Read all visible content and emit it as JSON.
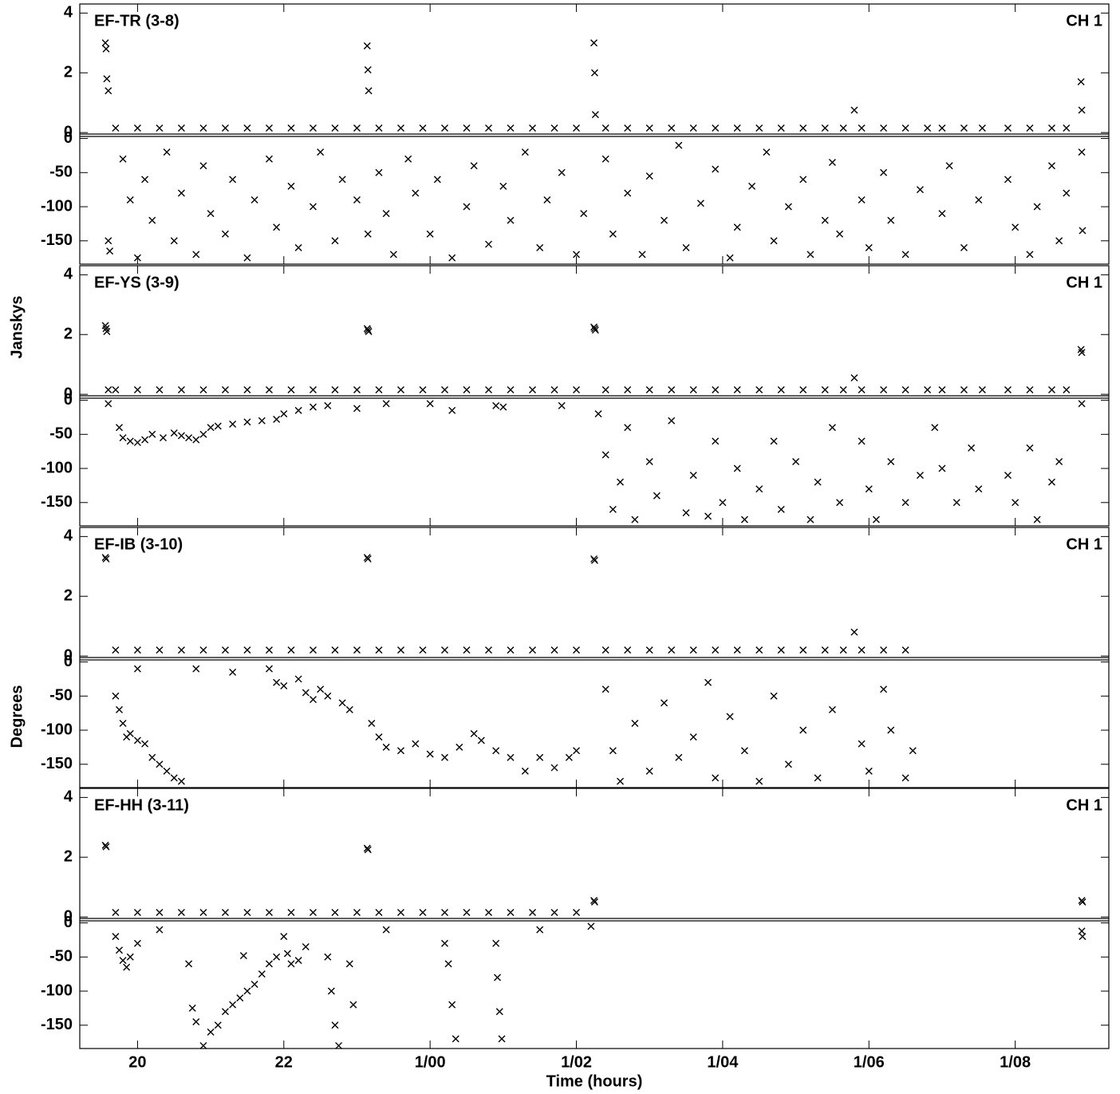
{
  "xlabel": "Time (hours)",
  "ylabels": [
    "Janskys",
    "Degrees"
  ],
  "xlim": [
    19.21,
    33.28
  ],
  "xticks": [
    {
      "value": 20,
      "label": "20"
    },
    {
      "value": 22,
      "label": "22"
    },
    {
      "value": 24,
      "label": "1/00"
    },
    {
      "value": 26,
      "label": "1/02"
    },
    {
      "value": 28,
      "label": "1/04"
    },
    {
      "value": 30,
      "label": "1/06"
    },
    {
      "value": 32,
      "label": "1/08"
    }
  ],
  "chart_data": [
    {
      "type": "scatter",
      "title": "EF-TR (3-8)",
      "channel_label": "CH 1",
      "amplitude_ylim": [
        -0.05,
        4.25
      ],
      "amplitude_yticks": [
        0,
        2,
        4
      ],
      "phase_ylim": [
        -183,
        3
      ],
      "phase_yticks": [
        0,
        -50,
        -100,
        -150
      ],
      "amplitude": {
        "x": [
          19.56,
          19.57,
          19.58,
          19.6,
          19.7,
          20.0,
          20.3,
          20.6,
          20.9,
          21.2,
          21.5,
          21.8,
          22.1,
          22.4,
          22.7,
          23.0,
          23.14,
          23.15,
          23.16,
          23.3,
          23.6,
          23.9,
          24.2,
          24.5,
          24.8,
          25.1,
          25.4,
          25.7,
          26.0,
          26.24,
          26.25,
          26.26,
          26.4,
          26.7,
          27.0,
          27.3,
          27.6,
          27.9,
          28.2,
          28.5,
          28.8,
          29.1,
          29.4,
          29.65,
          29.8,
          29.9,
          30.2,
          30.5,
          30.8,
          31.0,
          31.3,
          31.55,
          31.9,
          32.2,
          32.5,
          32.7,
          32.9,
          32.91
        ],
        "values": [
          3.0,
          2.8,
          1.8,
          1.4,
          0.15,
          0.15,
          0.15,
          0.15,
          0.15,
          0.15,
          0.15,
          0.15,
          0.15,
          0.15,
          0.15,
          0.15,
          2.9,
          2.1,
          1.4,
          0.15,
          0.15,
          0.15,
          0.15,
          0.15,
          0.15,
          0.15,
          0.15,
          0.15,
          0.15,
          3.0,
          2.0,
          0.6,
          0.15,
          0.15,
          0.15,
          0.15,
          0.15,
          0.15,
          0.15,
          0.15,
          0.15,
          0.15,
          0.15,
          0.15,
          0.75,
          0.15,
          0.15,
          0.15,
          0.15,
          0.15,
          0.15,
          0.15,
          0.15,
          0.15,
          0.15,
          0.15,
          1.7,
          0.75
        ]
      },
      "phase": {
        "x": [
          19.6,
          19.62,
          19.8,
          19.9,
          20.0,
          20.1,
          20.2,
          20.4,
          20.5,
          20.6,
          20.8,
          20.9,
          21.0,
          21.2,
          21.3,
          21.5,
          21.6,
          21.8,
          21.9,
          22.1,
          22.2,
          22.4,
          22.5,
          22.7,
          22.8,
          23.0,
          23.15,
          23.3,
          23.4,
          23.5,
          23.7,
          23.8,
          24.0,
          24.1,
          24.3,
          24.5,
          24.6,
          24.8,
          25.0,
          25.1,
          25.3,
          25.5,
          25.6,
          25.8,
          26.0,
          26.1,
          26.4,
          26.5,
          26.7,
          26.9,
          27.0,
          27.2,
          27.4,
          27.5,
          27.7,
          27.9,
          28.1,
          28.2,
          28.4,
          28.6,
          28.7,
          28.9,
          29.1,
          29.2,
          29.4,
          29.5,
          29.6,
          29.9,
          30.0,
          30.2,
          30.3,
          30.5,
          30.7,
          31.0,
          31.1,
          31.3,
          31.5,
          31.9,
          32.0,
          32.2,
          32.3,
          32.5,
          32.6,
          32.7,
          32.91,
          32.92
        ],
        "values": [
          -150,
          -165,
          -30,
          -90,
          -175,
          -60,
          -120,
          -20,
          -150,
          -80,
          -170,
          -40,
          -110,
          -140,
          -60,
          -175,
          -90,
          -30,
          -130,
          -70,
          -160,
          -100,
          -20,
          -150,
          -60,
          -90,
          -140,
          -50,
          -110,
          -170,
          -30,
          -80,
          -140,
          -60,
          -175,
          -100,
          -40,
          -155,
          -70,
          -120,
          -20,
          -160,
          -90,
          -50,
          -170,
          -110,
          -30,
          -140,
          -80,
          -170,
          -55,
          -120,
          -10,
          -160,
          -95,
          -45,
          -175,
          -130,
          -70,
          -20,
          -150,
          -100,
          -60,
          -170,
          -120,
          -35,
          -140,
          -90,
          -160,
          -50,
          -120,
          -170,
          -75,
          -110,
          -40,
          -160,
          -90,
          -60,
          -130,
          -170,
          -100,
          -40,
          -150,
          -80,
          -20,
          -135
        ]
      }
    },
    {
      "type": "scatter",
      "title": "EF-YS (3-9)",
      "channel_label": "CH 1",
      "amplitude_ylim": [
        -0.05,
        4.25
      ],
      "amplitude_yticks": [
        0,
        2,
        4
      ],
      "phase_ylim": [
        -183,
        3
      ],
      "phase_yticks": [
        0,
        -50,
        -100,
        -150
      ],
      "amplitude": {
        "x": [
          19.56,
          19.57,
          19.58,
          19.6,
          19.7,
          20.0,
          20.3,
          20.6,
          20.9,
          21.2,
          21.5,
          21.8,
          22.1,
          22.4,
          22.7,
          23.0,
          23.14,
          23.15,
          23.16,
          23.3,
          23.6,
          23.9,
          24.2,
          24.5,
          24.8,
          25.1,
          25.4,
          25.7,
          26.0,
          26.24,
          26.25,
          26.26,
          26.4,
          26.7,
          27.0,
          27.3,
          27.6,
          27.9,
          28.2,
          28.5,
          28.8,
          29.1,
          29.4,
          29.65,
          29.8,
          29.9,
          30.2,
          30.5,
          30.8,
          31.0,
          31.3,
          31.55,
          31.9,
          32.2,
          32.5,
          32.7,
          32.9,
          32.91
        ],
        "values": [
          2.3,
          2.2,
          2.1,
          0.15,
          0.15,
          0.15,
          0.15,
          0.15,
          0.15,
          0.15,
          0.15,
          0.15,
          0.15,
          0.15,
          0.15,
          0.15,
          2.2,
          2.15,
          2.1,
          0.15,
          0.15,
          0.15,
          0.15,
          0.15,
          0.15,
          0.15,
          0.15,
          0.15,
          0.15,
          2.25,
          2.2,
          2.15,
          0.15,
          0.15,
          0.15,
          0.15,
          0.15,
          0.15,
          0.15,
          0.15,
          0.15,
          0.15,
          0.15,
          0.15,
          0.55,
          0.15,
          0.15,
          0.15,
          0.15,
          0.15,
          0.15,
          0.15,
          0.15,
          0.15,
          0.15,
          0.15,
          1.5,
          1.4
        ]
      },
      "phase": {
        "x": [
          19.6,
          19.75,
          19.8,
          19.9,
          20.0,
          20.1,
          20.2,
          20.35,
          20.5,
          20.6,
          20.7,
          20.8,
          20.9,
          21.0,
          21.1,
          21.3,
          21.5,
          21.7,
          21.9,
          22.0,
          22.2,
          22.4,
          22.6,
          23.0,
          23.4,
          24.0,
          24.3,
          24.9,
          25.0,
          25.8,
          26.3,
          26.4,
          26.5,
          26.6,
          26.7,
          26.8,
          27.0,
          27.1,
          27.3,
          27.5,
          27.6,
          27.8,
          27.9,
          28.0,
          28.2,
          28.3,
          28.5,
          28.7,
          28.8,
          29.0,
          29.2,
          29.3,
          29.5,
          29.6,
          29.9,
          30.0,
          30.1,
          30.3,
          30.5,
          30.7,
          30.9,
          31.0,
          31.2,
          31.4,
          31.5,
          31.9,
          32.0,
          32.2,
          32.3,
          32.5,
          32.6,
          32.91
        ],
        "values": [
          -5,
          -40,
          -55,
          -60,
          -62,
          -58,
          -50,
          -55,
          -48,
          -52,
          -55,
          -58,
          -50,
          -40,
          -38,
          -35,
          -32,
          -30,
          -28,
          -20,
          -15,
          -10,
          -8,
          -12,
          -5,
          -5,
          -15,
          -8,
          -10,
          -8,
          -20,
          -80,
          -160,
          -120,
          -40,
          -175,
          -90,
          -140,
          -30,
          -165,
          -110,
          -170,
          -60,
          -150,
          -100,
          -175,
          -130,
          -60,
          -160,
          -90,
          -175,
          -120,
          -40,
          -150,
          -60,
          -130,
          -175,
          -90,
          -150,
          -110,
          -40,
          -100,
          -150,
          -70,
          -130,
          -110,
          -150,
          -70,
          -175,
          -120,
          -90,
          -5
        ]
      }
    },
    {
      "type": "scatter",
      "title": "EF-IB (3-10)",
      "channel_label": "CH 1",
      "amplitude_ylim": [
        -0.05,
        4.25
      ],
      "amplitude_yticks": [
        0,
        2,
        4
      ],
      "phase_ylim": [
        -183,
        3
      ],
      "phase_yticks": [
        0,
        -50,
        -100,
        -150
      ],
      "amplitude": {
        "x": [
          19.56,
          19.57,
          19.7,
          20.0,
          20.3,
          20.6,
          20.9,
          21.2,
          21.5,
          21.8,
          22.1,
          22.4,
          22.7,
          23.0,
          23.14,
          23.15,
          23.3,
          23.6,
          23.9,
          24.2,
          24.5,
          24.8,
          25.1,
          25.4,
          25.7,
          26.0,
          26.24,
          26.25,
          26.4,
          26.7,
          27.0,
          27.3,
          27.6,
          27.9,
          28.2,
          28.5,
          28.8,
          29.1,
          29.4,
          29.65,
          29.8,
          29.9,
          30.2,
          30.5
        ],
        "values": [
          3.3,
          3.25,
          0.2,
          0.2,
          0.2,
          0.2,
          0.2,
          0.2,
          0.2,
          0.2,
          0.2,
          0.2,
          0.2,
          0.2,
          3.3,
          3.25,
          0.2,
          0.2,
          0.2,
          0.2,
          0.2,
          0.2,
          0.2,
          0.2,
          0.2,
          0.2,
          3.25,
          3.2,
          0.2,
          0.2,
          0.2,
          0.2,
          0.2,
          0.2,
          0.2,
          0.2,
          0.2,
          0.2,
          0.2,
          0.2,
          0.8,
          0.2,
          0.2,
          0.2
        ]
      },
      "phase": {
        "x": [
          19.7,
          19.75,
          19.8,
          19.85,
          19.9,
          20.0,
          20.1,
          20.2,
          20.3,
          20.4,
          20.5,
          20.6,
          20.0,
          20.8,
          21.3,
          21.8,
          21.9,
          22.0,
          22.2,
          22.3,
          22.4,
          22.5,
          22.6,
          22.8,
          22.9,
          23.2,
          23.3,
          23.4,
          23.6,
          23.8,
          24.0,
          24.2,
          24.4,
          24.6,
          24.7,
          24.9,
          25.1,
          25.3,
          25.5,
          25.7,
          25.9,
          26.0,
          26.4,
          26.5,
          26.6,
          26.8,
          27.0,
          27.2,
          27.4,
          27.6,
          27.8,
          27.9,
          28.1,
          28.3,
          28.5,
          28.7,
          28.9,
          29.1,
          29.3,
          29.5,
          29.9,
          30.0,
          30.2,
          30.3,
          30.5,
          30.6
        ],
        "values": [
          -50,
          -70,
          -90,
          -110,
          -105,
          -115,
          -120,
          -140,
          -150,
          -160,
          -170,
          -175,
          -10,
          -10,
          -15,
          -10,
          -30,
          -35,
          -25,
          -45,
          -55,
          -40,
          -50,
          -60,
          -70,
          -90,
          -110,
          -125,
          -130,
          -120,
          -135,
          -140,
          -125,
          -105,
          -115,
          -130,
          -140,
          -160,
          -140,
          -155,
          -140,
          -130,
          -40,
          -130,
          -175,
          -90,
          -160,
          -60,
          -140,
          -110,
          -30,
          -170,
          -80,
          -130,
          -175,
          -50,
          -150,
          -100,
          -170,
          -70,
          -120,
          -160,
          -40,
          -100,
          -170,
          -130
        ]
      }
    },
    {
      "type": "scatter",
      "title": "EF-HH (3-11)",
      "channel_label": "CH 1",
      "amplitude_ylim": [
        -0.05,
        4.25
      ],
      "amplitude_yticks": [
        0,
        2,
        4
      ],
      "phase_ylim": [
        -183,
        3
      ],
      "phase_yticks": [
        0,
        -50,
        -100,
        -150
      ],
      "amplitude": {
        "x": [
          19.56,
          19.57,
          19.7,
          20.0,
          20.3,
          20.6,
          20.9,
          21.2,
          21.5,
          21.8,
          22.1,
          22.4,
          22.7,
          23.0,
          23.14,
          23.15,
          23.3,
          23.6,
          23.9,
          24.2,
          24.5,
          24.8,
          25.1,
          25.4,
          25.7,
          26.0,
          26.24,
          26.25,
          32.91,
          32.92
        ],
        "values": [
          2.4,
          2.35,
          0.15,
          0.15,
          0.15,
          0.15,
          0.15,
          0.15,
          0.15,
          0.15,
          0.15,
          0.15,
          0.15,
          0.15,
          2.3,
          2.25,
          0.15,
          0.15,
          0.15,
          0.15,
          0.15,
          0.15,
          0.15,
          0.15,
          0.15,
          0.15,
          0.55,
          0.5,
          0.55,
          0.5
        ]
      },
      "phase": {
        "x": [
          19.7,
          19.75,
          19.8,
          19.85,
          19.9,
          20.0,
          20.3,
          20.7,
          20.75,
          20.8,
          20.9,
          21.0,
          21.1,
          21.2,
          21.3,
          21.4,
          21.5,
          21.6,
          21.7,
          21.8,
          21.9,
          22.0,
          22.05,
          22.1,
          22.2,
          22.3,
          21.45,
          22.6,
          22.65,
          22.7,
          22.75,
          22.9,
          22.95,
          23.4,
          24.2,
          24.25,
          24.3,
          24.35,
          24.9,
          24.92,
          24.95,
          24.98,
          25.5,
          26.2,
          32.91,
          32.92
        ],
        "values": [
          -20,
          -40,
          -55,
          -65,
          -50,
          -30,
          -10,
          -60,
          -125,
          -145,
          -180,
          -160,
          -150,
          -130,
          -120,
          -110,
          -100,
          -90,
          -75,
          -60,
          -50,
          -20,
          -45,
          -60,
          -55,
          -35,
          -48,
          -50,
          -100,
          -150,
          -180,
          -60,
          -120,
          -10,
          -30,
          -60,
          -120,
          -170,
          -30,
          -80,
          -130,
          -170,
          -10,
          -5,
          -12,
          -20
        ]
      }
    }
  ]
}
